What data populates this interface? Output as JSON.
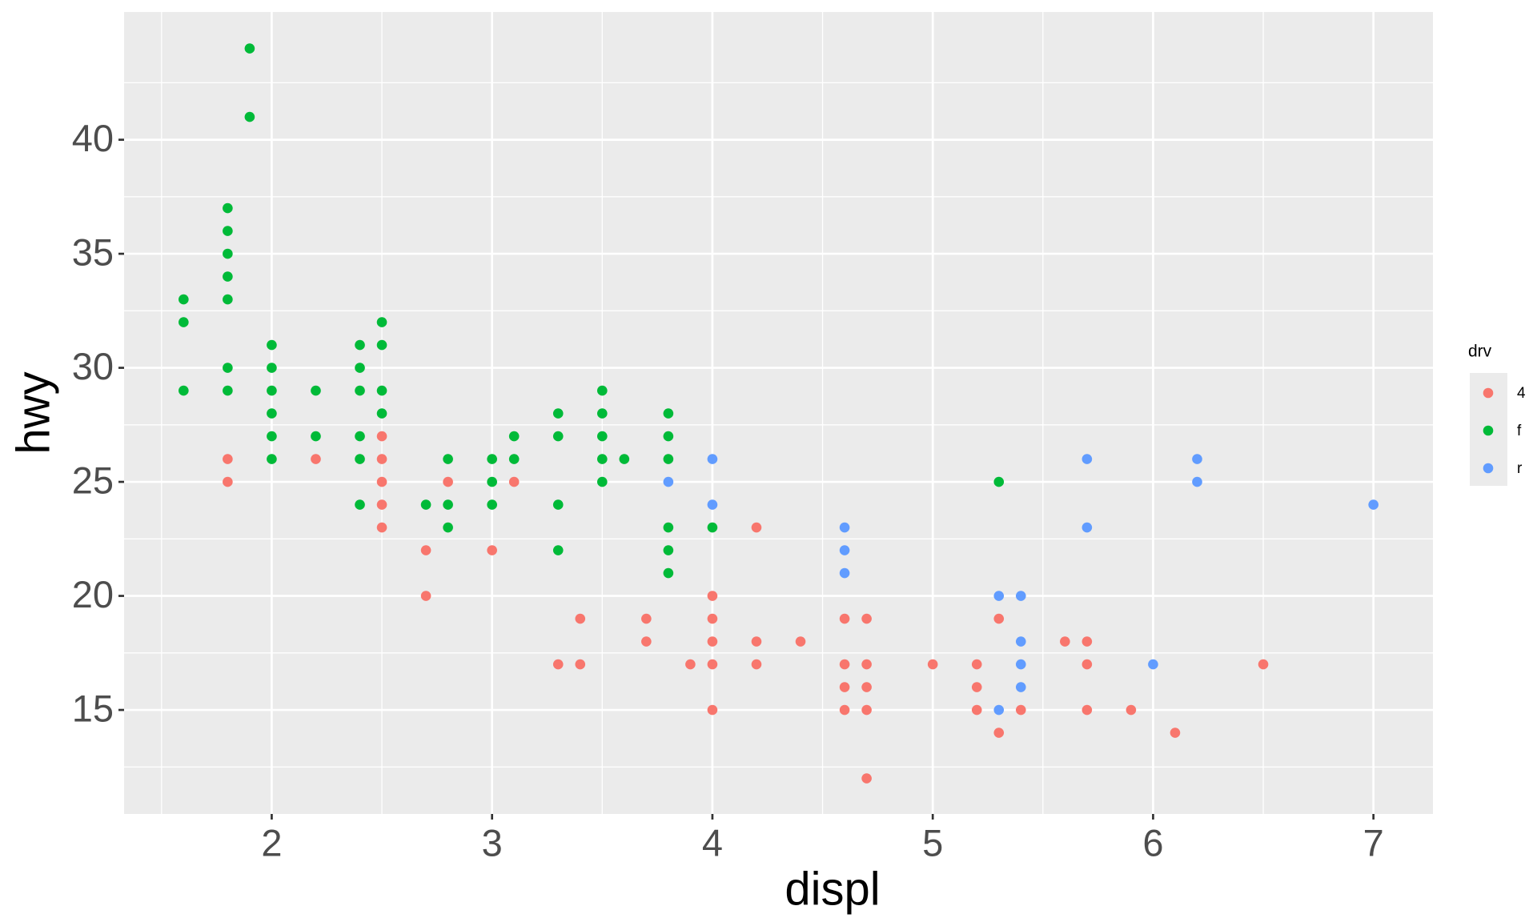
{
  "chart_data": {
    "type": "scatter",
    "xlabel": "displ",
    "ylabel": "hwy",
    "legend_title": "drv",
    "legend": "right",
    "xlim": [
      1.33,
      7.27
    ],
    "ylim": [
      10.44,
      45.6
    ],
    "xticks": [
      2,
      3,
      4,
      5,
      6,
      7
    ],
    "yticks": [
      15,
      20,
      25,
      30,
      35,
      40
    ],
    "x_minor_grid": [
      1.5,
      2.5,
      3.5,
      4.5,
      5.5,
      6.5
    ],
    "y_minor_grid": [
      12.5,
      17.5,
      22.5,
      27.5,
      32.5,
      37.5,
      42.5
    ],
    "grid": true,
    "series": [
      {
        "name": "4",
        "color": "#F8766D",
        "x": [
          1.8,
          1.8,
          2.2,
          2.5,
          2.5,
          2.5,
          2.5,
          2.5,
          2.7,
          2.7,
          2.8,
          3,
          3.1,
          3.3,
          3.4,
          3.4,
          3.7,
          3.7,
          3.9,
          4,
          4,
          4,
          4,
          4,
          4.2,
          4.2,
          4.2,
          4.4,
          4.6,
          4.6,
          4.6,
          4.6,
          4.7,
          4.7,
          4.7,
          4.7,
          4.7,
          5,
          5.2,
          5.2,
          5.2,
          5.3,
          5.3,
          5.4,
          5.6,
          5.7,
          5.7,
          5.7,
          5.9,
          6.1,
          6.5
        ],
        "values": [
          26,
          25,
          26,
          27,
          26,
          25,
          24,
          23,
          22,
          20,
          25,
          22,
          25,
          17,
          19,
          17,
          19,
          18,
          17,
          20,
          19,
          18,
          17,
          15,
          23,
          18,
          17,
          18,
          19,
          17,
          16,
          15,
          19,
          17,
          16,
          15,
          12,
          17,
          17,
          16,
          15,
          19,
          14,
          15,
          18,
          18,
          17,
          15,
          15,
          14,
          17
        ]
      },
      {
        "name": "f",
        "color": "#00BA38",
        "x": [
          1.6,
          1.6,
          1.6,
          1.8,
          1.8,
          1.8,
          1.8,
          1.8,
          1.8,
          1.8,
          1.9,
          1.9,
          2,
          2,
          2,
          2,
          2,
          2,
          2.2,
          2.2,
          2.4,
          2.4,
          2.4,
          2.4,
          2.4,
          2.4,
          2.5,
          2.5,
          2.5,
          2.5,
          2.7,
          2.8,
          2.8,
          2.8,
          3,
          3,
          3,
          3.1,
          3.1,
          3.3,
          3.3,
          3.3,
          3.3,
          3.5,
          3.5,
          3.5,
          3.5,
          3.5,
          3.6,
          3.8,
          3.8,
          3.8,
          3.8,
          3.8,
          3.8,
          4,
          5.3
        ],
        "values": [
          33,
          32,
          29,
          37,
          36,
          35,
          34,
          33,
          30,
          29,
          44,
          41,
          31,
          30,
          29,
          28,
          27,
          26,
          29,
          27,
          31,
          30,
          29,
          27,
          26,
          24,
          32,
          31,
          29,
          28,
          24,
          26,
          24,
          23,
          26,
          25,
          24,
          27,
          26,
          28,
          27,
          24,
          22,
          29,
          28,
          27,
          26,
          25,
          26,
          28,
          27,
          26,
          23,
          22,
          21,
          23,
          25
        ]
      },
      {
        "name": "r",
        "color": "#619CFF",
        "x": [
          3.8,
          4,
          4,
          4.6,
          4.6,
          4.6,
          5.3,
          5.3,
          5.4,
          5.4,
          5.4,
          5.4,
          5.7,
          5.7,
          6,
          6.2,
          6.2,
          7
        ],
        "values": [
          25,
          26,
          24,
          23,
          22,
          21,
          20,
          15,
          20,
          18,
          17,
          16,
          26,
          23,
          17,
          26,
          25,
          24
        ]
      }
    ]
  }
}
